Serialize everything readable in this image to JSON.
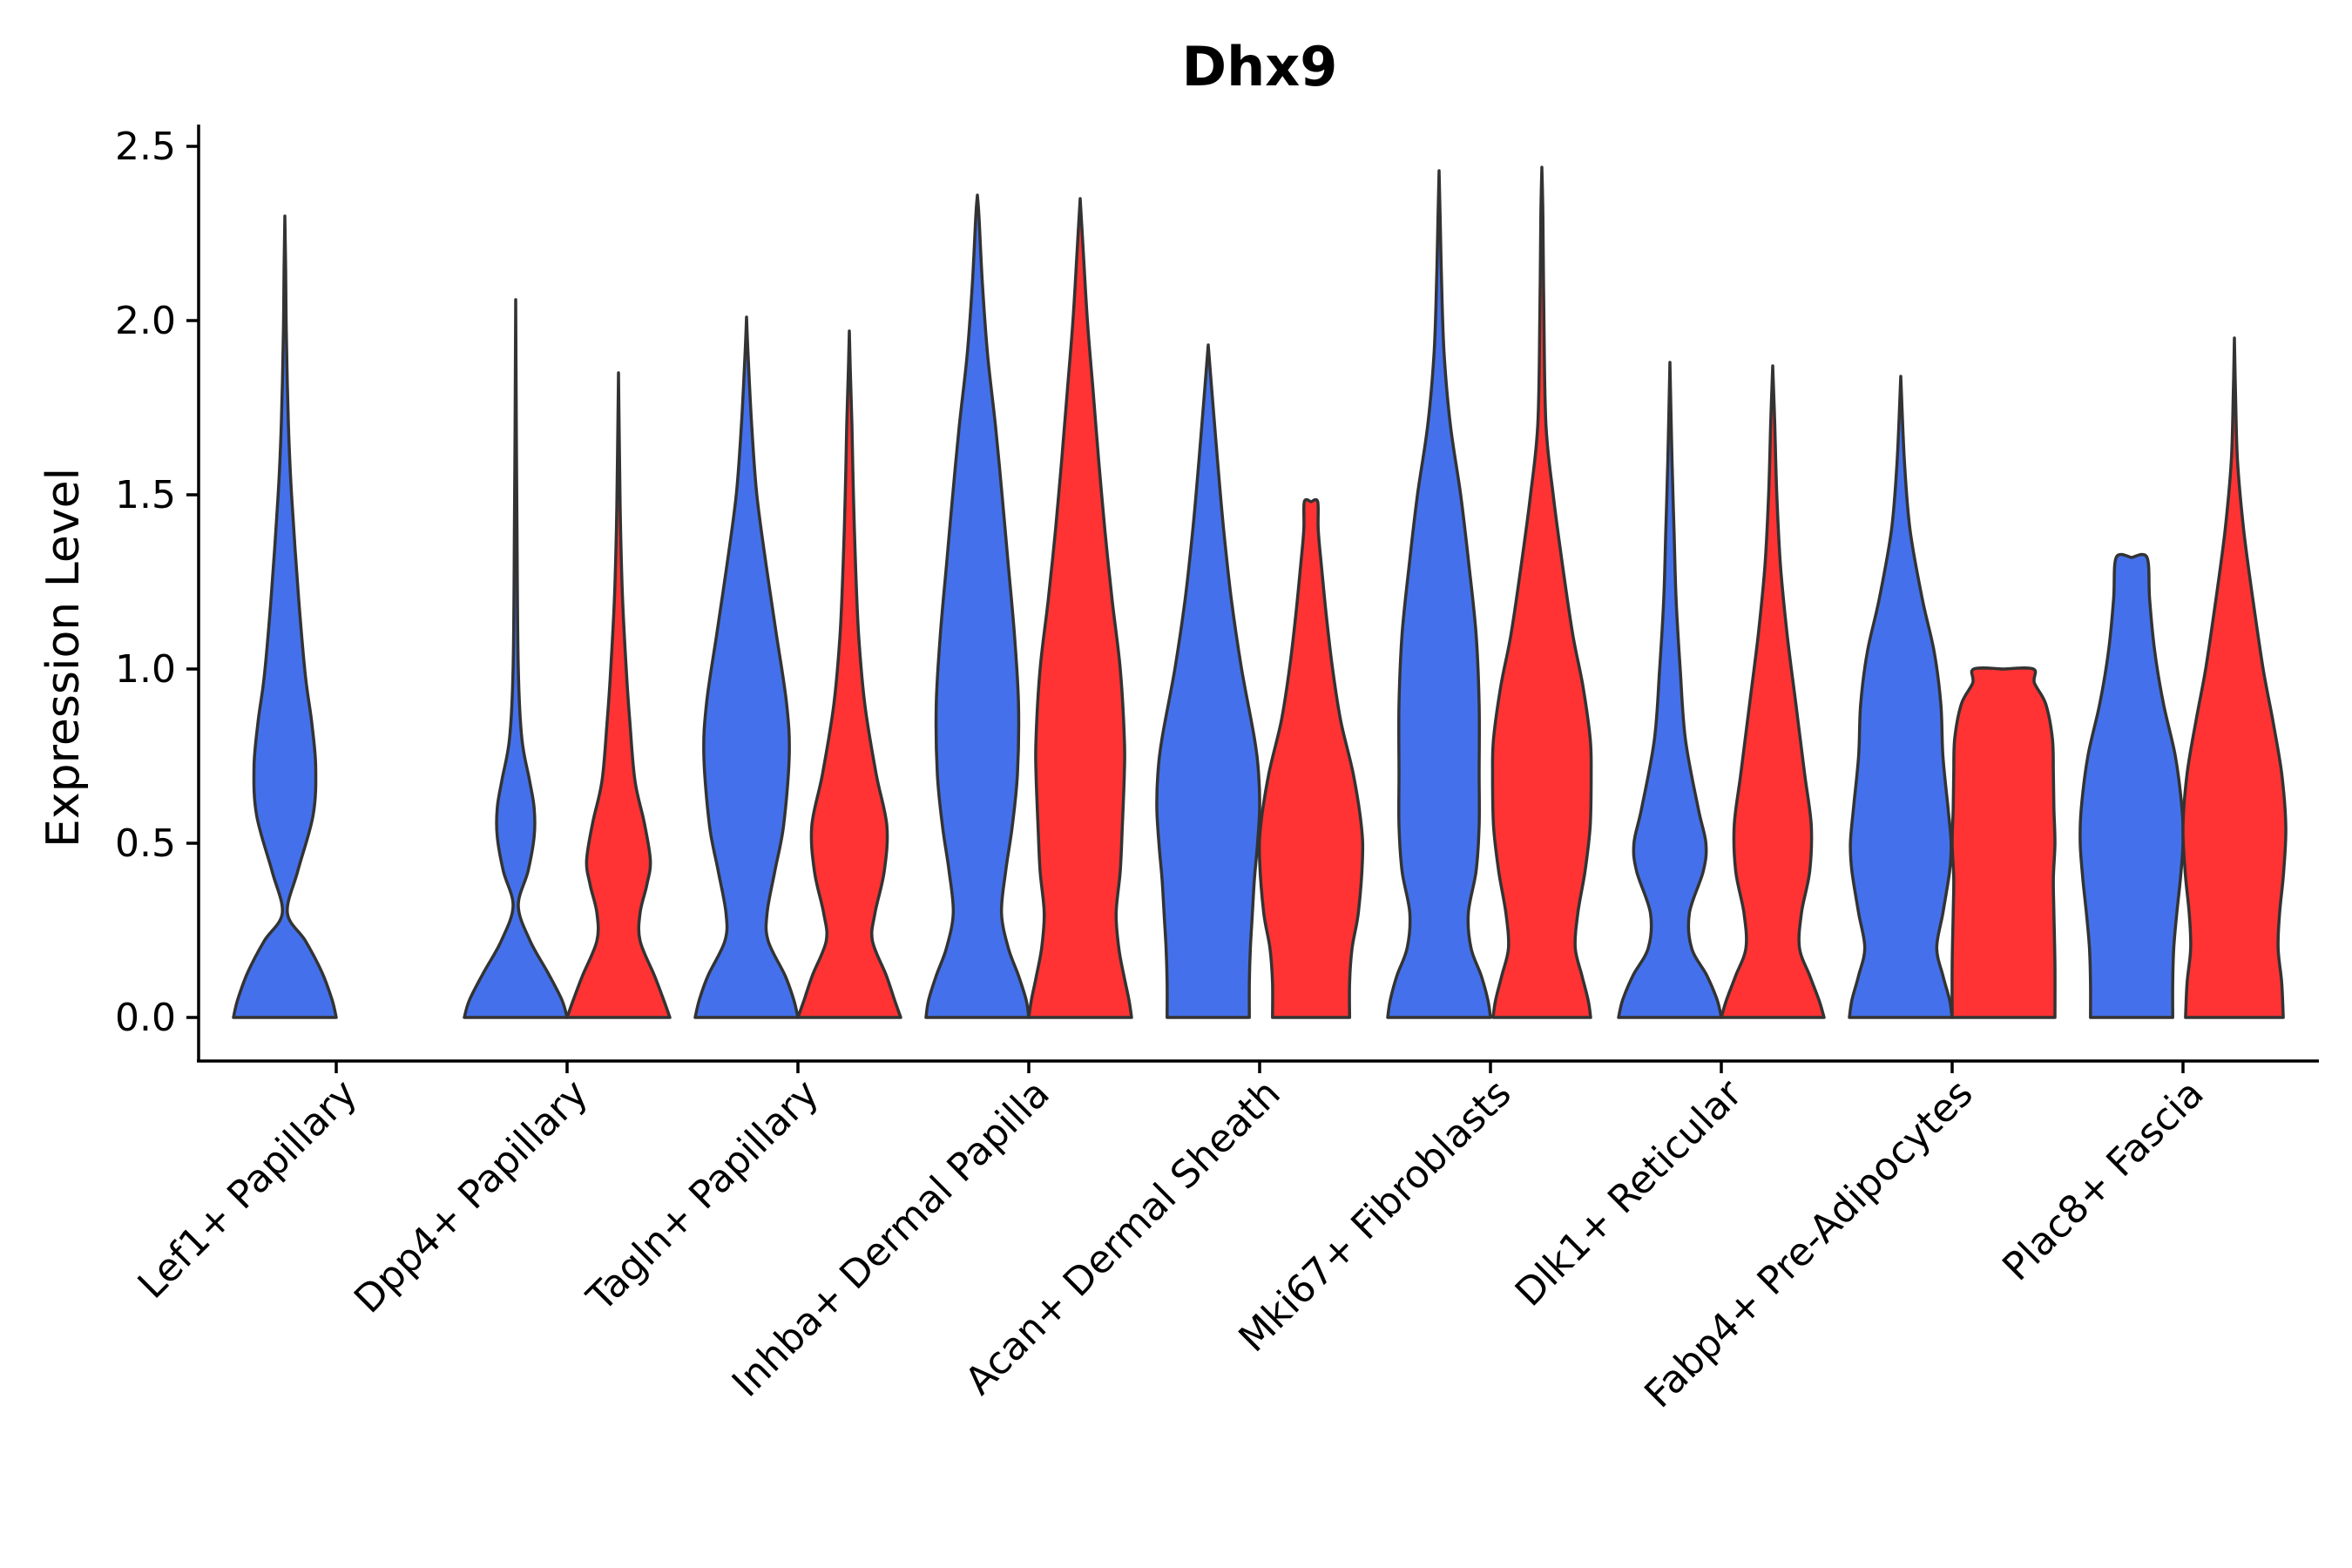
{
  "chart_data": {
    "type": "violin",
    "title": "Dhx9",
    "xlabel": "",
    "ylabel": "Expression Level",
    "ylim": [
      -0.12,
      2.56
    ],
    "yticks": [
      "0.0",
      "0.5",
      "1.0",
      "1.5",
      "2.0",
      "2.5"
    ],
    "grid": false,
    "legend": "none",
    "colors": {
      "group1": "#4471eb",
      "group2": "#ff3333",
      "outline": "#333333"
    },
    "categories": [
      "Lef1+ Papillary",
      "Dpp4+ Papillary",
      "Tagln+ Papillary",
      "Inhba+ Dermal Papilla",
      "Acan+ Dermal Sheath",
      "Mki67+ Fibroblasts",
      "Dlk1+ Reticular",
      "Fabp4+ Pre-Adipocytes",
      "Plac8+ Fascia"
    ],
    "violins": [
      {
        "category": "Lef1+ Papillary",
        "group": "blue",
        "max": 2.3,
        "profile": [
          [
            0,
            1
          ],
          [
            0.05,
            0.92
          ],
          [
            0.13,
            0.72
          ],
          [
            0.22,
            0.4
          ],
          [
            0.3,
            0.05
          ],
          [
            0.42,
            0.25
          ],
          [
            0.58,
            0.55
          ],
          [
            0.72,
            0.6
          ],
          [
            0.85,
            0.52
          ],
          [
            0.98,
            0.4
          ],
          [
            1.2,
            0.27
          ],
          [
            1.5,
            0.13
          ],
          [
            1.7,
            0.07
          ],
          [
            1.95,
            0.03
          ],
          [
            2.15,
            0.015
          ],
          [
            2.3,
            0
          ]
        ]
      },
      {
        "category": "Dpp4+ Papillary",
        "group": "blue",
        "max": 2.06,
        "profile": [
          [
            0,
            1
          ],
          [
            0.05,
            0.9
          ],
          [
            0.13,
            0.62
          ],
          [
            0.22,
            0.28
          ],
          [
            0.32,
            0.05
          ],
          [
            0.42,
            0.24
          ],
          [
            0.52,
            0.36
          ],
          [
            0.6,
            0.36
          ],
          [
            0.68,
            0.27
          ],
          [
            0.8,
            0.12
          ],
          [
            1.0,
            0.05
          ],
          [
            1.4,
            0.025
          ],
          [
            1.7,
            0.012
          ],
          [
            2.06,
            0
          ]
        ]
      },
      {
        "category": "Dpp4+ Papillary",
        "group": "red",
        "max": 1.85,
        "profile": [
          [
            0,
            1
          ],
          [
            0.05,
            0.88
          ],
          [
            0.12,
            0.7
          ],
          [
            0.22,
            0.42
          ],
          [
            0.3,
            0.42
          ],
          [
            0.38,
            0.55
          ],
          [
            0.45,
            0.62
          ],
          [
            0.56,
            0.5
          ],
          [
            0.68,
            0.32
          ],
          [
            0.85,
            0.22
          ],
          [
            1.0,
            0.15
          ],
          [
            1.2,
            0.08
          ],
          [
            1.4,
            0.04
          ],
          [
            1.6,
            0.02
          ],
          [
            1.85,
            0
          ]
        ]
      },
      {
        "category": "Tagln+ Papillary",
        "group": "blue",
        "max": 2.01,
        "profile": [
          [
            0,
            1
          ],
          [
            0.05,
            0.92
          ],
          [
            0.12,
            0.75
          ],
          [
            0.22,
            0.42
          ],
          [
            0.3,
            0.4
          ],
          [
            0.42,
            0.55
          ],
          [
            0.55,
            0.72
          ],
          [
            0.75,
            0.83
          ],
          [
            0.9,
            0.78
          ],
          [
            1.1,
            0.58
          ],
          [
            1.3,
            0.38
          ],
          [
            1.5,
            0.2
          ],
          [
            1.7,
            0.1
          ],
          [
            1.9,
            0.03
          ],
          [
            2.01,
            0
          ]
        ]
      },
      {
        "category": "Tagln+ Papillary",
        "group": "red",
        "max": 1.97,
        "profile": [
          [
            0,
            1
          ],
          [
            0.05,
            0.88
          ],
          [
            0.12,
            0.72
          ],
          [
            0.22,
            0.45
          ],
          [
            0.3,
            0.5
          ],
          [
            0.42,
            0.68
          ],
          [
            0.55,
            0.73
          ],
          [
            0.7,
            0.52
          ],
          [
            0.9,
            0.3
          ],
          [
            1.1,
            0.18
          ],
          [
            1.3,
            0.12
          ],
          [
            1.5,
            0.08
          ],
          [
            1.7,
            0.05
          ],
          [
            1.85,
            0.02
          ],
          [
            1.97,
            0
          ]
        ]
      },
      {
        "category": "Inhba+ Dermal Papilla",
        "group": "blue",
        "max": 2.36,
        "profile": [
          [
            0,
            1
          ],
          [
            0.05,
            0.95
          ],
          [
            0.12,
            0.8
          ],
          [
            0.2,
            0.6
          ],
          [
            0.3,
            0.47
          ],
          [
            0.42,
            0.55
          ],
          [
            0.55,
            0.68
          ],
          [
            0.7,
            0.78
          ],
          [
            0.9,
            0.8
          ],
          [
            1.1,
            0.72
          ],
          [
            1.3,
            0.6
          ],
          [
            1.5,
            0.48
          ],
          [
            1.7,
            0.35
          ],
          [
            1.9,
            0.2
          ],
          [
            2.1,
            0.1
          ],
          [
            2.3,
            0.03
          ],
          [
            2.36,
            0
          ]
        ]
      },
      {
        "category": "Inhba+ Dermal Papilla",
        "group": "red",
        "max": 2.35,
        "profile": [
          [
            0,
            1
          ],
          [
            0.05,
            0.95
          ],
          [
            0.12,
            0.85
          ],
          [
            0.2,
            0.75
          ],
          [
            0.3,
            0.7
          ],
          [
            0.42,
            0.78
          ],
          [
            0.55,
            0.82
          ],
          [
            0.7,
            0.86
          ],
          [
            0.8,
            0.86
          ],
          [
            1.0,
            0.78
          ],
          [
            1.2,
            0.62
          ],
          [
            1.4,
            0.48
          ],
          [
            1.6,
            0.36
          ],
          [
            1.8,
            0.25
          ],
          [
            2.0,
            0.14
          ],
          [
            2.2,
            0.06
          ],
          [
            2.35,
            0
          ]
        ]
      },
      {
        "category": "Acan+ Dermal Sheath",
        "group": "blue",
        "max": 1.93,
        "profile": [
          [
            0,
            0.8
          ],
          [
            0.1,
            0.8
          ],
          [
            0.2,
            0.82
          ],
          [
            0.3,
            0.86
          ],
          [
            0.4,
            0.9
          ],
          [
            0.5,
            0.96
          ],
          [
            0.6,
            1.0
          ],
          [
            0.7,
            0.98
          ],
          [
            0.8,
            0.9
          ],
          [
            1.0,
            0.65
          ],
          [
            1.2,
            0.45
          ],
          [
            1.4,
            0.3
          ],
          [
            1.6,
            0.18
          ],
          [
            1.8,
            0.07
          ],
          [
            1.93,
            0
          ]
        ]
      },
      {
        "category": "Acan+ Dermal Sheath",
        "group": "red",
        "max": 1.48,
        "profile": [
          [
            0,
            0.75
          ],
          [
            0.1,
            0.75
          ],
          [
            0.2,
            0.8
          ],
          [
            0.3,
            0.92
          ],
          [
            0.45,
            1.0
          ],
          [
            0.55,
            0.98
          ],
          [
            0.7,
            0.82
          ],
          [
            0.85,
            0.58
          ],
          [
            1.0,
            0.42
          ],
          [
            1.15,
            0.3
          ],
          [
            1.3,
            0.2
          ],
          [
            1.4,
            0.14
          ],
          [
            1.48,
            0.13
          ],
          [
            1.48,
            0
          ]
        ]
      },
      {
        "category": "Mki67+ Fibroblasts",
        "group": "blue",
        "max": 2.43,
        "profile": [
          [
            0,
            1
          ],
          [
            0.05,
            0.95
          ],
          [
            0.12,
            0.82
          ],
          [
            0.2,
            0.62
          ],
          [
            0.3,
            0.57
          ],
          [
            0.42,
            0.72
          ],
          [
            0.55,
            0.78
          ],
          [
            0.7,
            0.78
          ],
          [
            0.9,
            0.78
          ],
          [
            1.1,
            0.72
          ],
          [
            1.3,
            0.58
          ],
          [
            1.5,
            0.42
          ],
          [
            1.7,
            0.22
          ],
          [
            1.9,
            0.1
          ],
          [
            2.1,
            0.05
          ],
          [
            2.3,
            0.02
          ],
          [
            2.43,
            0
          ]
        ]
      },
      {
        "category": "Mki67+ Fibroblasts",
        "group": "red",
        "max": 2.44,
        "profile": [
          [
            0,
            0.95
          ],
          [
            0.05,
            0.9
          ],
          [
            0.12,
            0.78
          ],
          [
            0.2,
            0.65
          ],
          [
            0.3,
            0.7
          ],
          [
            0.42,
            0.84
          ],
          [
            0.55,
            0.94
          ],
          [
            0.7,
            0.96
          ],
          [
            0.8,
            0.94
          ],
          [
            0.95,
            0.8
          ],
          [
            1.1,
            0.6
          ],
          [
            1.3,
            0.4
          ],
          [
            1.5,
            0.22
          ],
          [
            1.7,
            0.08
          ],
          [
            2.0,
            0.04
          ],
          [
            2.3,
            0.02
          ],
          [
            2.44,
            0
          ]
        ]
      },
      {
        "category": "Dlk1+ Reticular",
        "group": "blue",
        "max": 1.88,
        "profile": [
          [
            0,
            1
          ],
          [
            0.05,
            0.92
          ],
          [
            0.12,
            0.72
          ],
          [
            0.2,
            0.42
          ],
          [
            0.3,
            0.38
          ],
          [
            0.42,
            0.65
          ],
          [
            0.5,
            0.7
          ],
          [
            0.6,
            0.55
          ],
          [
            0.8,
            0.3
          ],
          [
            1.0,
            0.2
          ],
          [
            1.2,
            0.12
          ],
          [
            1.4,
            0.08
          ],
          [
            1.6,
            0.04
          ],
          [
            1.88,
            0
          ]
        ]
      },
      {
        "category": "Dlk1+ Reticular",
        "group": "red",
        "max": 1.87,
        "profile": [
          [
            0,
            1
          ],
          [
            0.05,
            0.9
          ],
          [
            0.12,
            0.72
          ],
          [
            0.2,
            0.52
          ],
          [
            0.3,
            0.56
          ],
          [
            0.42,
            0.72
          ],
          [
            0.55,
            0.75
          ],
          [
            0.7,
            0.62
          ],
          [
            0.9,
            0.45
          ],
          [
            1.1,
            0.28
          ],
          [
            1.3,
            0.15
          ],
          [
            1.5,
            0.08
          ],
          [
            1.7,
            0.04
          ],
          [
            1.87,
            0
          ]
        ]
      },
      {
        "category": "Fabp4+ Pre-Adipocytes",
        "group": "blue",
        "max": 1.84,
        "profile": [
          [
            0,
            1
          ],
          [
            0.05,
            0.95
          ],
          [
            0.12,
            0.82
          ],
          [
            0.2,
            0.7
          ],
          [
            0.3,
            0.82
          ],
          [
            0.42,
            0.95
          ],
          [
            0.5,
            0.98
          ],
          [
            0.6,
            0.92
          ],
          [
            0.75,
            0.82
          ],
          [
            0.9,
            0.78
          ],
          [
            1.05,
            0.65
          ],
          [
            1.2,
            0.42
          ],
          [
            1.4,
            0.18
          ],
          [
            1.6,
            0.07
          ],
          [
            1.84,
            0
          ]
        ]
      },
      {
        "category": "Fabp4+ Pre-Adipocytes",
        "group": "red",
        "max": 1.0,
        "profile": [
          [
            0,
            1
          ],
          [
            0.15,
            1.0
          ],
          [
            0.3,
            0.98
          ],
          [
            0.4,
            0.97
          ],
          [
            0.5,
            1.0
          ],
          [
            0.6,
            0.98
          ],
          [
            0.7,
            0.97
          ],
          [
            0.8,
            0.95
          ],
          [
            0.9,
            0.82
          ],
          [
            0.96,
            0.6
          ],
          [
            1.0,
            0.58
          ],
          [
            1.0,
            0
          ]
        ]
      },
      {
        "category": "Plac8+ Fascia",
        "group": "blue",
        "max": 1.32,
        "profile": [
          [
            0,
            0.8
          ],
          [
            0.1,
            0.8
          ],
          [
            0.2,
            0.82
          ],
          [
            0.3,
            0.88
          ],
          [
            0.4,
            0.95
          ],
          [
            0.5,
            1.0
          ],
          [
            0.6,
            0.98
          ],
          [
            0.75,
            0.85
          ],
          [
            0.9,
            0.62
          ],
          [
            1.05,
            0.45
          ],
          [
            1.2,
            0.35
          ],
          [
            1.32,
            0.3
          ],
          [
            1.32,
            0
          ]
        ]
      },
      {
        "category": "Plac8+ Fascia",
        "group": "red",
        "max": 1.95,
        "profile": [
          [
            0,
            0.95
          ],
          [
            0.1,
            0.92
          ],
          [
            0.2,
            0.85
          ],
          [
            0.3,
            0.88
          ],
          [
            0.42,
            0.96
          ],
          [
            0.55,
            1.0
          ],
          [
            0.7,
            0.92
          ],
          [
            0.85,
            0.75
          ],
          [
            1.0,
            0.56
          ],
          [
            1.2,
            0.36
          ],
          [
            1.4,
            0.18
          ],
          [
            1.6,
            0.06
          ],
          [
            1.8,
            0.02
          ],
          [
            1.95,
            0
          ]
        ]
      }
    ]
  }
}
